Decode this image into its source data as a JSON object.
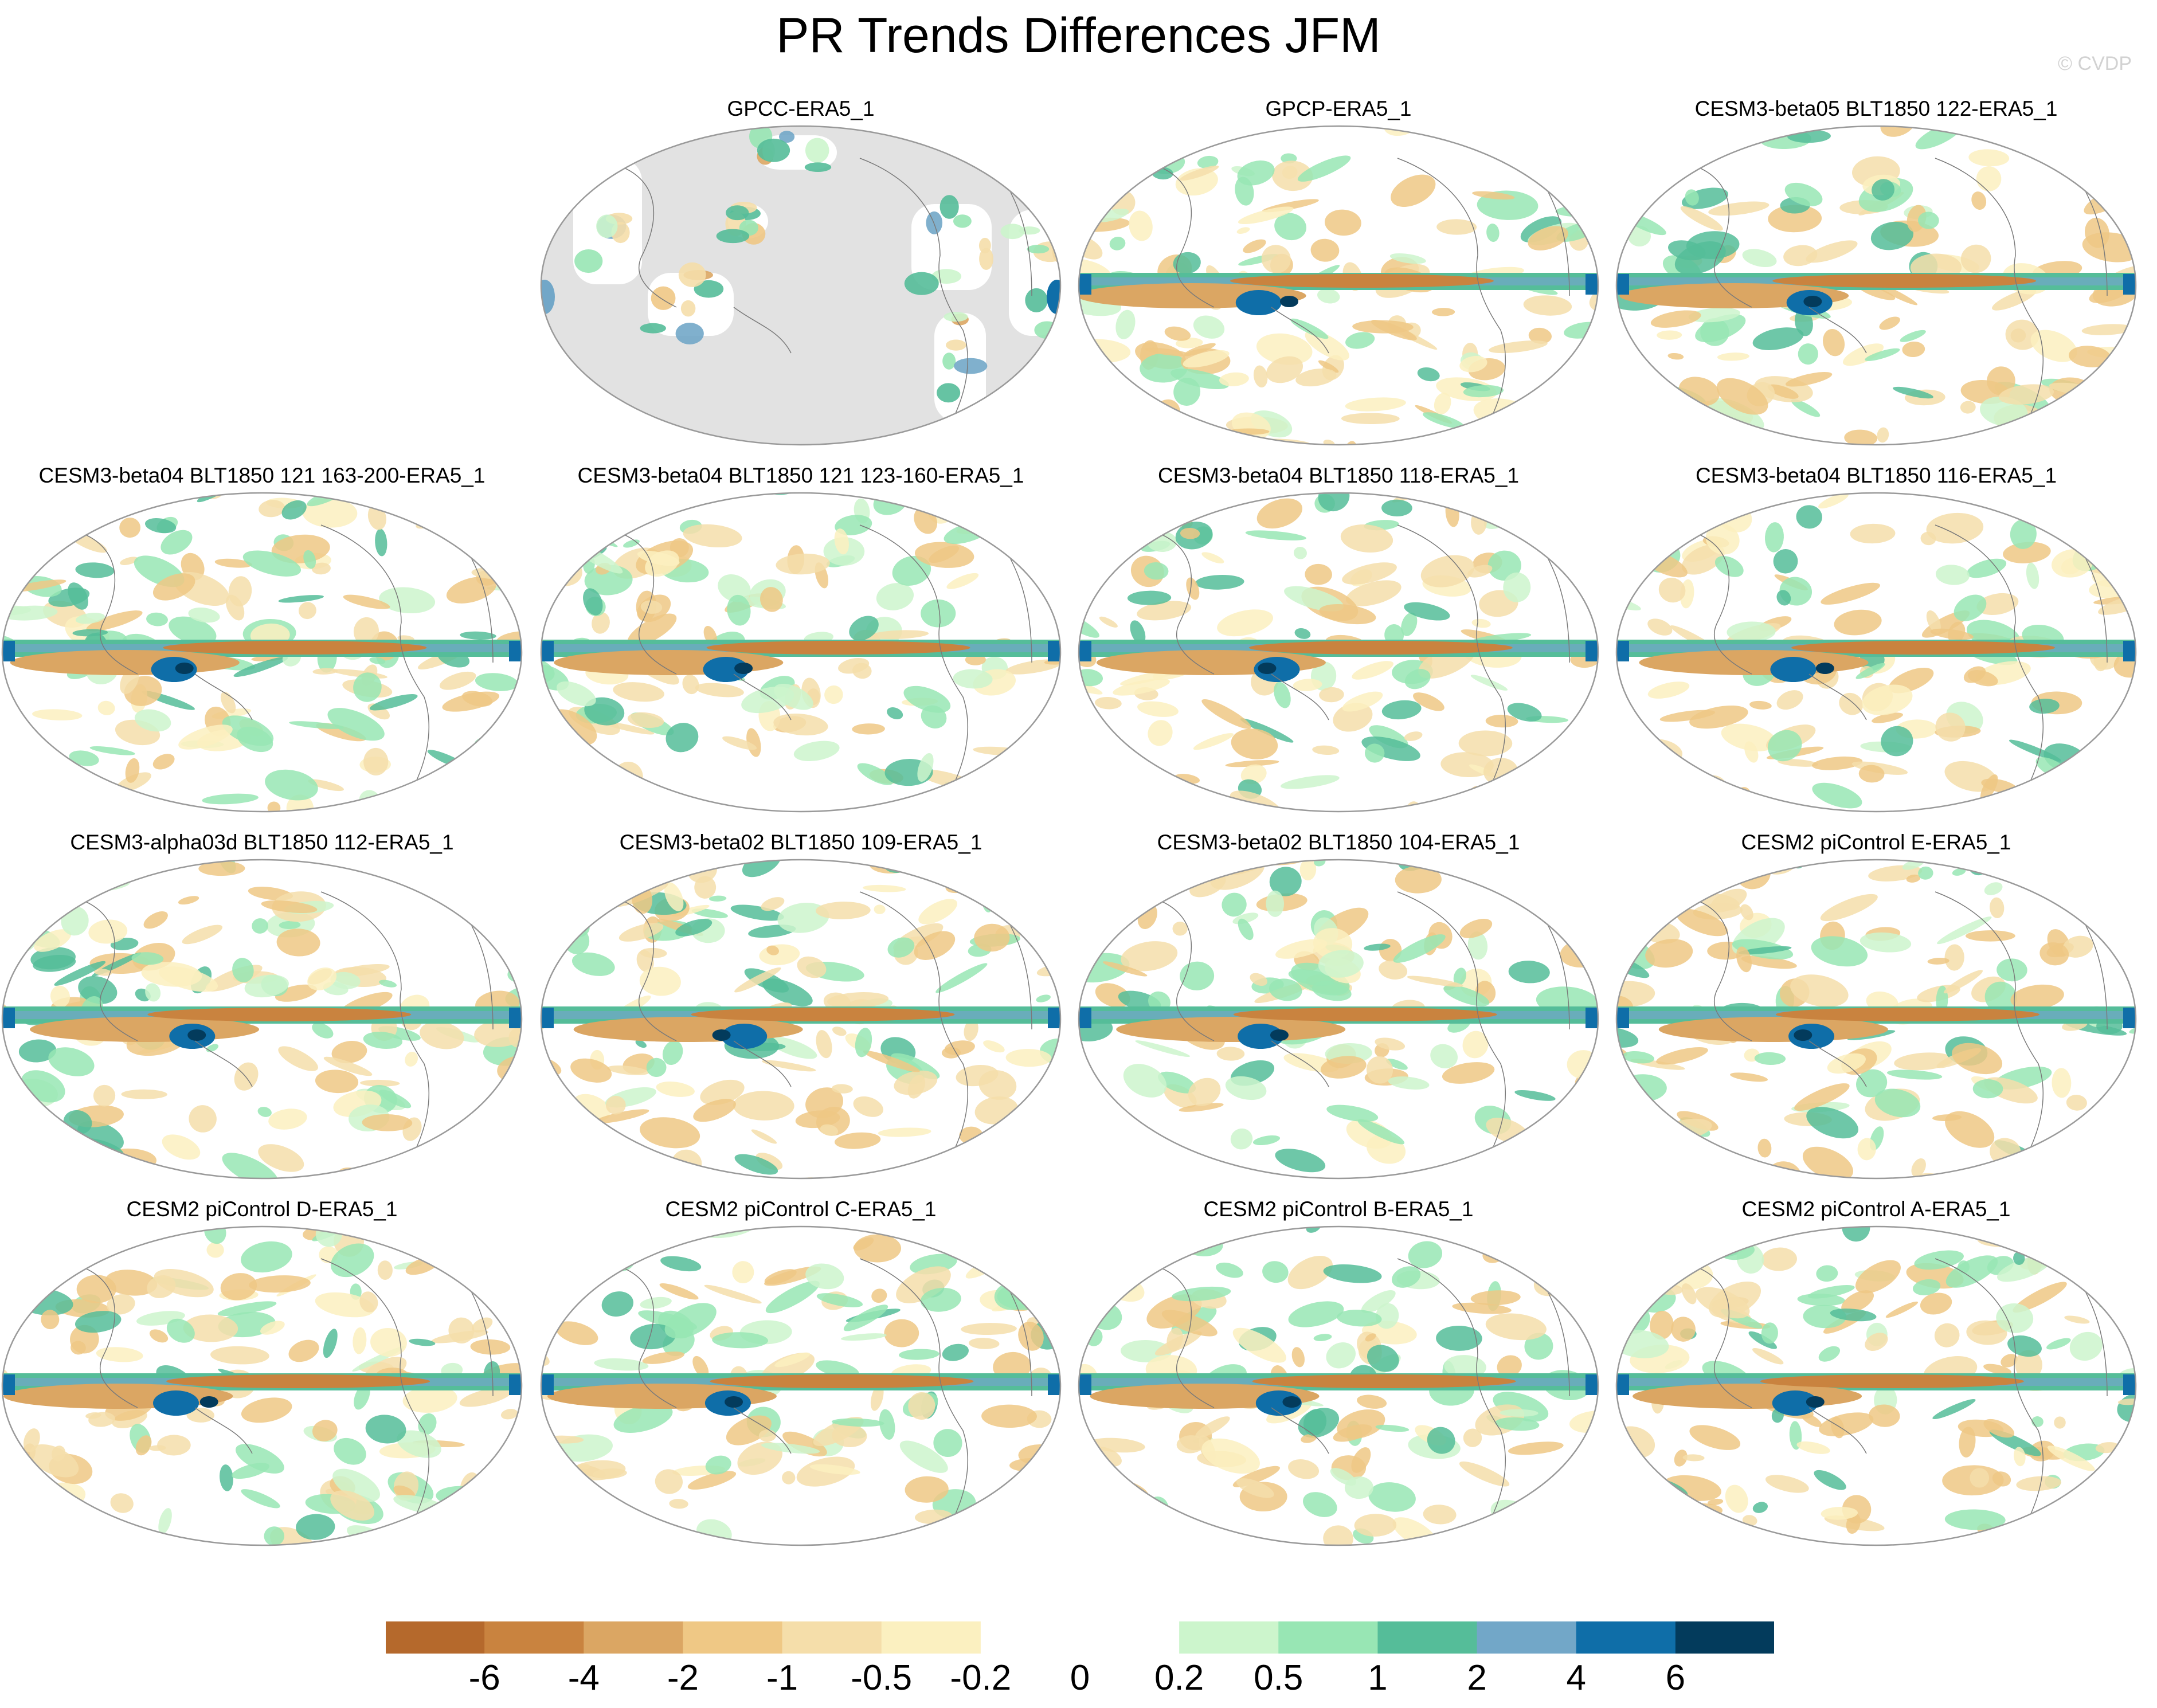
{
  "figure": {
    "title": "PR Trends Differences JFM",
    "copyright": "© CVDP"
  },
  "panels": [
    {
      "title": "",
      "empty": true
    },
    {
      "title": "GPCC-ERA5_1",
      "land_only": true
    },
    {
      "title": "GPCP-ERA5_1"
    },
    {
      "title": "CESM3-beta05 BLT1850 122-ERA5_1"
    },
    {
      "title": "CESM3-beta04 BLT1850 121 163-200-ERA5_1"
    },
    {
      "title": "CESM3-beta04 BLT1850 121 123-160-ERA5_1"
    },
    {
      "title": "CESM3-beta04 BLT1850 118-ERA5_1"
    },
    {
      "title": "CESM3-beta04 BLT1850 116-ERA5_1"
    },
    {
      "title": "CESM3-alpha03d BLT1850 112-ERA5_1"
    },
    {
      "title": "CESM3-beta02 BLT1850 109-ERA5_1"
    },
    {
      "title": "CESM3-beta02 BLT1850 104-ERA5_1"
    },
    {
      "title": "CESM2 piControl E-ERA5_1"
    },
    {
      "title": "CESM2 piControl D-ERA5_1"
    },
    {
      "title": "CESM2 piControl C-ERA5_1"
    },
    {
      "title": "CESM2 piControl B-ERA5_1"
    },
    {
      "title": "CESM2 piControl A-ERA5_1"
    }
  ],
  "colorbar": {
    "labels": [
      "-6",
      "-4",
      "-2",
      "-1",
      "-0.5",
      "-0.2",
      "0",
      "0.2",
      "0.5",
      "1",
      "2",
      "4",
      "6"
    ],
    "colors": [
      "#b5692c",
      "#c9833f",
      "#dba663",
      "#efc885",
      "#f5deaa",
      "#fbf0c0",
      "#ffffff",
      "#ffffff",
      "#ccf5cc",
      "#98e6b4",
      "#55bd99",
      "#72a7c8",
      "#0f6ea8",
      "#033b5c"
    ]
  },
  "map_colors": {
    "frame": "#9a9a9a",
    "missing": "#e2e2e2",
    "coast": "#7a7a7a"
  }
}
